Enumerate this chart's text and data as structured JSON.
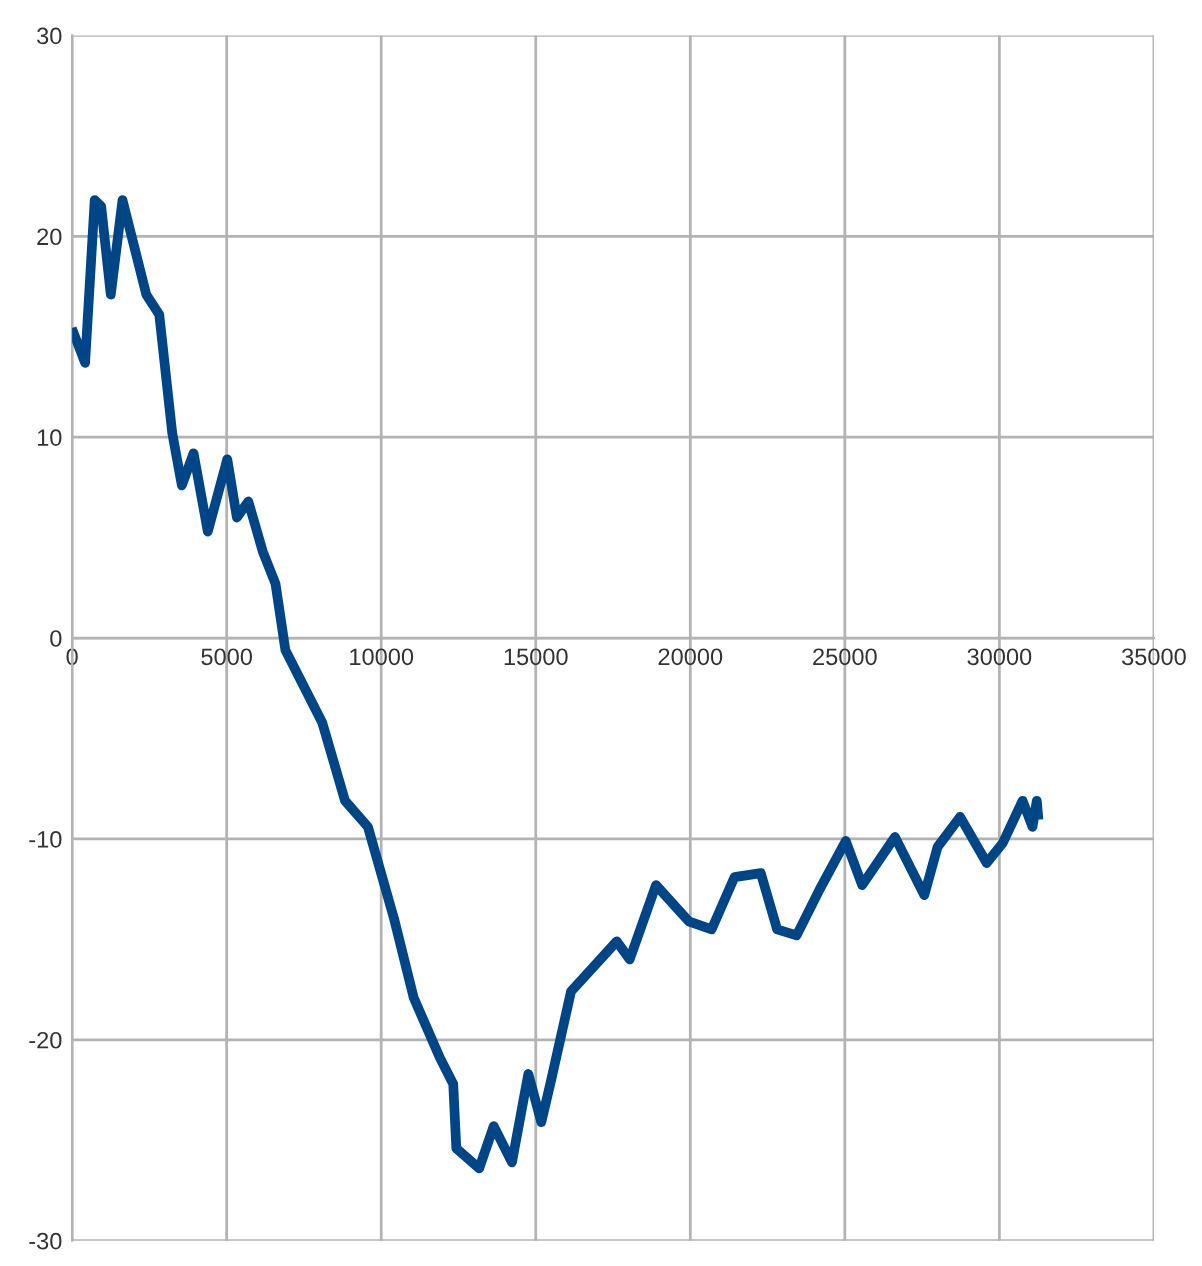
{
  "chart_data": {
    "type": "line",
    "x": [
      45,
      420,
      730,
      940,
      1250,
      1630,
      2400,
      2820,
      3240,
      3550,
      3930,
      4390,
      5020,
      5330,
      5700,
      6170,
      6580,
      6900,
      8090,
      8830,
      9570,
      10420,
      11050,
      11900,
      12330,
      12430,
      13170,
      13640,
      14230,
      14760,
      15180,
      15500,
      16140,
      17620,
      18040,
      18890,
      19950,
      20690,
      21430,
      22280,
      22810,
      23440,
      24190,
      25030,
      25560,
      26620,
      27570,
      28000,
      28730,
      29590,
      30110,
      30750,
      31070,
      31210,
      31250
    ],
    "series": [
      {
        "color": "#004586",
        "values": [
          15.2,
          13.7,
          21.8,
          21.5,
          17.1,
          21.8,
          17.1,
          16.1,
          10.2,
          7.6,
          9.2,
          5.3,
          8.9,
          6.0,
          6.8,
          4.3,
          2.7,
          -0.6,
          -4.2,
          -8.1,
          -9.4,
          -14.0,
          -17.9,
          -20.9,
          -22.2,
          -25.4,
          -26.4,
          -24.3,
          -26.1,
          -21.7,
          -24.1,
          -22.0,
          -17.6,
          -15.1,
          -16.0,
          -12.3,
          -14.1,
          -14.5,
          -11.9,
          -11.7,
          -14.5,
          -14.8,
          -12.5,
          -10.1,
          -12.3,
          -9.9,
          -12.8,
          -10.4,
          -8.9,
          -11.2,
          -10.2,
          -8.1,
          -9.4,
          -8.1,
          -8.8
        ]
      }
    ],
    "xlim": [
      0,
      35000
    ],
    "xticks": [
      0,
      5000,
      10000,
      15000,
      20000,
      25000,
      30000,
      35000
    ],
    "ylim": [
      -30,
      30
    ],
    "yticks": [
      -30,
      -20,
      -10,
      0,
      10,
      20,
      30
    ],
    "grid": true,
    "legend": false,
    "marker": "none",
    "line_style": "solid"
  }
}
